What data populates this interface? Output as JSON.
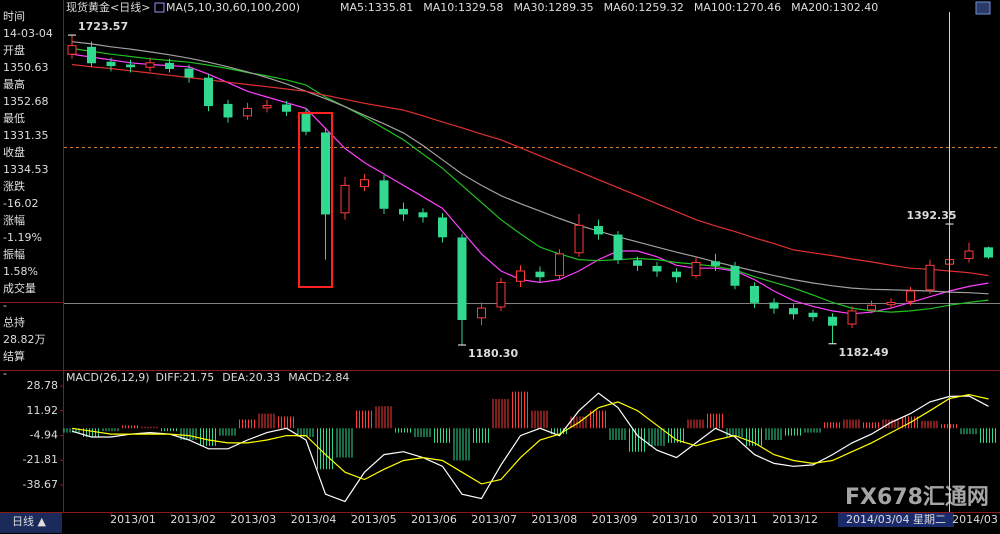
{
  "header": {
    "title": "现货黄金<日线>",
    "ma_label": "MA(5,10,30,60,100,200)",
    "ma_values": [
      {
        "text": "MA5:1335.81",
        "color": "#ffffff"
      },
      {
        "text": "MA10:1329.58",
        "color": "#ffff00"
      },
      {
        "text": "MA30:1289.35",
        "color": "#ff40ff"
      },
      {
        "text": "MA60:1259.32",
        "color": "#20e020"
      },
      {
        "text": "MA100:1270.46",
        "color": "#c0c0c0"
      },
      {
        "text": "MA200:1302.40",
        "color": "#ff5050"
      }
    ]
  },
  "sidebar": [
    {
      "label": "时间",
      "value": "14-03-04",
      "color": "#ffffff"
    },
    {
      "label": "开盘",
      "value": "1350.63",
      "color": "#ff5050"
    },
    {
      "label": "最高",
      "value": "1352.68",
      "color": "#ff5050"
    },
    {
      "label": "最低",
      "value": "1331.35",
      "color": "#20e020"
    },
    {
      "label": "收盘",
      "value": "1334.53",
      "color": "#20e020"
    },
    {
      "label": "涨跌",
      "value": "-16.02",
      "color": "#20e020"
    },
    {
      "label": "涨幅",
      "value": "-1.19%",
      "color": "#20e020"
    },
    {
      "label": "振幅",
      "value": "1.58%",
      "color": "#ffffff"
    },
    {
      "label": "成交量",
      "value": "-",
      "color": "#ffffff"
    },
    {
      "label": "总持",
      "value": "28.82万",
      "color": "#ffffff"
    },
    {
      "label": "结算",
      "value": "-",
      "color": "#ffffff"
    }
  ],
  "period_tab": "日线 ▲",
  "x_labels": [
    "2013/01",
    "2013/02",
    "2013/03",
    "2013/04",
    "2013/05",
    "2013/06",
    "2013/07",
    "2013/08",
    "2013/09",
    "2013/10",
    "2013/11",
    "2013/12"
  ],
  "x_label_last": "2014/03",
  "cursor_label": "2014/03/04 星期二",
  "watermark": "FX678汇通网",
  "chart_data": [
    {
      "type": "candlestick",
      "ylim": [
        1140,
        1764
      ],
      "up_color": "#ff3c3c",
      "down_color": "#30d890",
      "open": [
        1690,
        1702,
        1676,
        1671,
        1667,
        1674,
        1664,
        1648,
        1602,
        1582,
        1596,
        1601,
        1588,
        1552,
        1412,
        1458,
        1468,
        1418,
        1412,
        1403,
        1368,
        1228,
        1247,
        1292,
        1308,
        1302,
        1342,
        1388,
        1373,
        1328,
        1318,
        1308,
        1302,
        1326,
        1318,
        1283,
        1254,
        1244,
        1236,
        1229,
        1217,
        1242,
        1251,
        1257,
        1277,
        1322,
        1332,
        1350.63
      ],
      "high": [
        1723.57,
        1712,
        1684,
        1680,
        1684,
        1682,
        1672,
        1655,
        1610,
        1605,
        1610,
        1608,
        1596,
        1560,
        1475,
        1480,
        1478,
        1430,
        1420,
        1412,
        1375,
        1255,
        1298,
        1320,
        1318,
        1348,
        1410,
        1400,
        1380,
        1335,
        1326,
        1315,
        1335,
        1340,
        1326,
        1290,
        1262,
        1252,
        1242,
        1236,
        1248,
        1258,
        1262,
        1282,
        1330,
        1392.35,
        1360,
        1352.68
      ],
      "low": [
        1682,
        1668,
        1660,
        1658,
        1660,
        1658,
        1640,
        1590,
        1570,
        1575,
        1588,
        1582,
        1548,
        1330,
        1400,
        1450,
        1410,
        1398,
        1395,
        1360,
        1180.3,
        1215,
        1240,
        1282,
        1290,
        1295,
        1335,
        1365,
        1322,
        1310,
        1300,
        1290,
        1298,
        1310,
        1278,
        1245,
        1235,
        1225,
        1222,
        1182.49,
        1210,
        1236,
        1244,
        1250,
        1270,
        1315,
        1325,
        1331.35
      ],
      "close": [
        1705,
        1675,
        1670,
        1668,
        1675,
        1665,
        1650,
        1600,
        1580,
        1595,
        1600,
        1590,
        1555,
        1410,
        1460,
        1470,
        1420,
        1410,
        1405,
        1370,
        1225,
        1245,
        1290,
        1310,
        1300,
        1340,
        1390,
        1375,
        1330,
        1320,
        1310,
        1300,
        1325,
        1320,
        1285,
        1255,
        1245,
        1235,
        1230,
        1215,
        1240,
        1250,
        1255,
        1275,
        1320,
        1330,
        1345,
        1334.53
      ],
      "series": [
        {
          "name": "MA30",
          "color": "#ff40ff",
          "values": [
            1690,
            1685,
            1680,
            1675,
            1672,
            1670,
            1668,
            1655,
            1640,
            1625,
            1615,
            1605,
            1595,
            1560,
            1525,
            1500,
            1480,
            1460,
            1440,
            1420,
            1380,
            1340,
            1310,
            1295,
            1290,
            1295,
            1310,
            1330,
            1345,
            1345,
            1335,
            1320,
            1315,
            1315,
            1310,
            1295,
            1275,
            1258,
            1248,
            1240,
            1235,
            1238,
            1245,
            1255,
            1265,
            1275,
            1283,
            1289
          ]
        },
        {
          "name": "MA60",
          "color": "#20c020",
          "values": [
            1700,
            1695,
            1690,
            1686,
            1682,
            1679,
            1676,
            1671,
            1665,
            1658,
            1652,
            1645,
            1636,
            1615,
            1598,
            1580,
            1560,
            1540,
            1515,
            1490,
            1460,
            1430,
            1400,
            1375,
            1352,
            1340,
            1330,
            1328,
            1330,
            1332,
            1330,
            1325,
            1322,
            1318,
            1312,
            1300,
            1290,
            1280,
            1268,
            1255,
            1245,
            1240,
            1238,
            1240,
            1244,
            1250,
            1255,
            1259
          ]
        },
        {
          "name": "MA100",
          "color": "#a0a0a0",
          "values": [
            1712,
            1708,
            1703,
            1699,
            1694,
            1689,
            1683,
            1676,
            1668,
            1659,
            1649,
            1638,
            1625,
            1612,
            1598,
            1583,
            1568,
            1552,
            1530,
            1505,
            1480,
            1460,
            1442,
            1428,
            1415,
            1402,
            1390,
            1380,
            1370,
            1361,
            1352,
            1343,
            1335,
            1326,
            1318,
            1310,
            1302,
            1295,
            1289,
            1284,
            1280,
            1278,
            1277,
            1276,
            1275,
            1273,
            1272,
            1270
          ]
        },
        {
          "name": "MA200",
          "color": "#e03030",
          "values": [
            1672,
            1668,
            1665,
            1661,
            1657,
            1653,
            1649,
            1645,
            1641,
            1637,
            1633,
            1629,
            1625,
            1618,
            1611,
            1604,
            1598,
            1592,
            1582,
            1571,
            1561,
            1550,
            1540,
            1526,
            1512,
            1498,
            1484,
            1470,
            1456,
            1442,
            1428,
            1414,
            1400,
            1389,
            1379,
            1368,
            1358,
            1347,
            1342,
            1337,
            1331,
            1326,
            1320,
            1315,
            1313,
            1310,
            1307,
            1302
          ]
        }
      ],
      "annotations": [
        {
          "text": "1723.57",
          "candle": 0,
          "field": "high",
          "color": "#ff5070"
        },
        {
          "text": "1180.30",
          "candle": 20,
          "field": "low",
          "color": "#a0f0c0"
        },
        {
          "text": "1182.49",
          "candle": 39,
          "field": "low",
          "color": "#a0f0c0"
        },
        {
          "text": "1392.35",
          "candle": 45,
          "field": "high",
          "color": "#ff5070"
        }
      ]
    },
    {
      "type": "macd",
      "title": "MACD(26,12,9)",
      "ylim": [
        -55.8,
        38.4
      ],
      "yticks": [
        28.78,
        11.92,
        -4.94,
        -21.81,
        -38.67
      ],
      "legend": [
        {
          "text": "DIFF:21.75",
          "color": "#ffffff"
        },
        {
          "text": "DEA:20.33",
          "color": "#ffff00"
        },
        {
          "text": "MACD:2.84",
          "color": "#ff40ff"
        }
      ],
      "up_color": "#ff3c3c",
      "down_color": "#30d890",
      "values": [
        -3,
        -6,
        -2,
        2,
        1,
        -2,
        -8,
        -12,
        -5,
        6,
        10,
        8,
        -6,
        -28,
        -20,
        12,
        15,
        -3,
        -6,
        -10,
        -22,
        -10,
        20,
        25,
        12,
        -4,
        8,
        12,
        -8,
        -16,
        -12,
        -10,
        6,
        10,
        -6,
        -12,
        -8,
        -5,
        -3,
        4,
        6,
        4,
        6,
        8,
        5,
        2.84,
        -4,
        -10
      ],
      "series": [
        {
          "name": "DIFF",
          "color": "#ffffff",
          "values": [
            -2,
            -6,
            -6,
            -4,
            -3,
            -4,
            -8,
            -14,
            -14,
            -8,
            -3,
            0,
            -8,
            -45,
            -50,
            -30,
            -18,
            -16,
            -20,
            -26,
            -45,
            -48,
            -25,
            -5,
            0,
            -5,
            12,
            24,
            14,
            -5,
            -15,
            -20,
            -10,
            0,
            -6,
            -18,
            -24,
            -26,
            -25,
            -18,
            -10,
            -4,
            4,
            10,
            18,
            21.75,
            22,
            15
          ]
        },
        {
          "name": "DEA",
          "color": "#ffff00",
          "values": [
            0,
            -2,
            -4,
            -4,
            -4,
            -4,
            -5,
            -8,
            -10,
            -10,
            -8,
            -5,
            -5,
            -18,
            -30,
            -35,
            -28,
            -22,
            -20,
            -22,
            -30,
            -38,
            -35,
            -20,
            -8,
            -4,
            4,
            14,
            18,
            12,
            2,
            -8,
            -12,
            -8,
            -5,
            -10,
            -18,
            -22,
            -24,
            -22,
            -16,
            -10,
            -3,
            4,
            12,
            20.33,
            23,
            20
          ]
        }
      ]
    }
  ]
}
